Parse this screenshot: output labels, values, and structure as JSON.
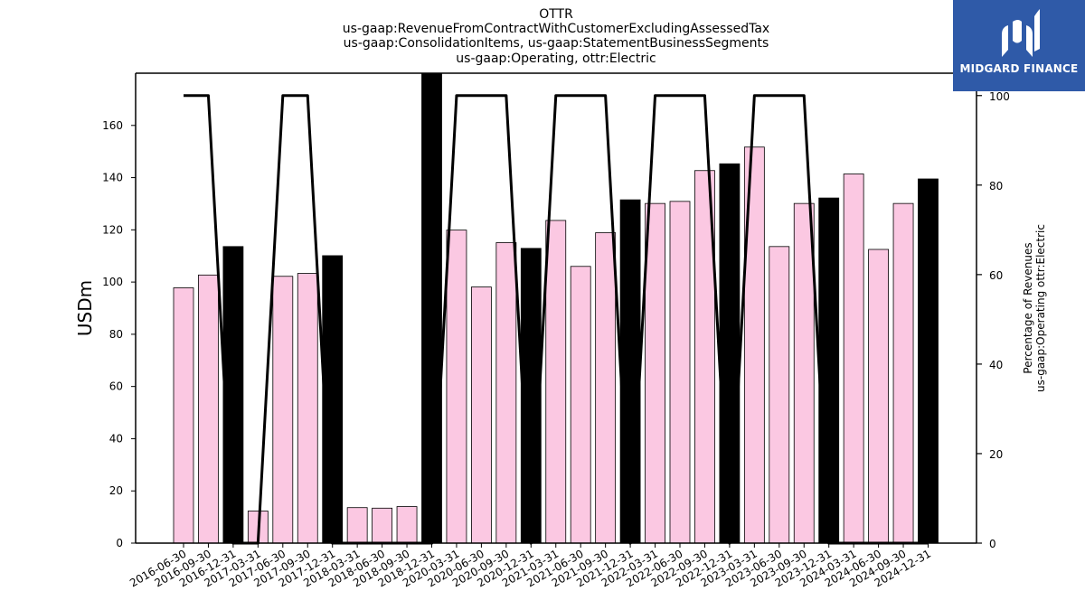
{
  "chart_data": {
    "type": "bar",
    "title_lines": [
      "OTTR",
      "us-gaap:RevenueFromContractWithCustomerExcludingAssessedTax",
      "us-gaap:ConsolidationItems, us-gaap:StatementBusinessSegments",
      "us-gaap:Operating, ottr:Electric"
    ],
    "ylabel": "USDm",
    "ylabel_right_lines": [
      "Percentage of Revenues",
      "us-gaap:Operating ottr:Electric"
    ],
    "ylim": [
      0,
      180
    ],
    "ylim_right": [
      0,
      105
    ],
    "yticks": [
      0,
      20,
      40,
      60,
      80,
      100,
      120,
      140,
      160
    ],
    "yticks_right": [
      0,
      20,
      40,
      60,
      80,
      100
    ],
    "categories": [
      "2016-06-30",
      "2016-09-30",
      "2016-12-31",
      "2017-03-31",
      "2017-06-30",
      "2017-09-30",
      "2017-12-31",
      "2018-03-31",
      "2018-06-30",
      "2018-09-30",
      "2018-12-31",
      "2020-03-31",
      "2020-06-30",
      "2020-09-30",
      "2020-12-31",
      "2021-03-31",
      "2021-06-30",
      "2021-09-30",
      "2021-12-31",
      "2022-03-31",
      "2022-06-30",
      "2022-09-30",
      "2022-12-31",
      "2023-03-31",
      "2023-06-30",
      "2023-09-30",
      "2023-12-31",
      "2024-03-31",
      "2024-06-30",
      "2024-09-30",
      "2024-12-31"
    ],
    "series": [
      {
        "kind": "bar",
        "values": [
          97.8,
          102.7,
          113.6,
          12.3,
          102.2,
          103.3,
          110.1,
          13.6,
          13.4,
          14.0,
          180.0,
          119.9,
          98.1,
          115.1,
          112.9,
          123.6,
          106.0,
          118.9,
          131.5,
          130.1,
          130.9,
          142.7,
          145.3,
          151.7,
          113.6,
          130.1,
          132.2,
          141.4,
          112.5,
          130.1,
          139.5
        ],
        "annual": [
          false,
          false,
          true,
          false,
          false,
          false,
          true,
          false,
          false,
          false,
          true,
          false,
          false,
          false,
          true,
          false,
          false,
          false,
          true,
          false,
          false,
          false,
          true,
          false,
          false,
          false,
          true,
          false,
          false,
          false,
          true
        ],
        "colors": {
          "quarter": "#fbc8e2",
          "annual": "#000000",
          "edge": "#000000"
        }
      },
      {
        "kind": "line",
        "axis": "right",
        "values": [
          100,
          100,
          0,
          0,
          100,
          100,
          0,
          0,
          0,
          0,
          0,
          100,
          100,
          100,
          0,
          100,
          100,
          100,
          0,
          100,
          100,
          100,
          0,
          100,
          100,
          100,
          0,
          0,
          0,
          0,
          0
        ],
        "color": "#000000"
      }
    ]
  },
  "logo": {
    "text": "MIDGARD FINANCE",
    "bg": "#2f5aa8"
  }
}
